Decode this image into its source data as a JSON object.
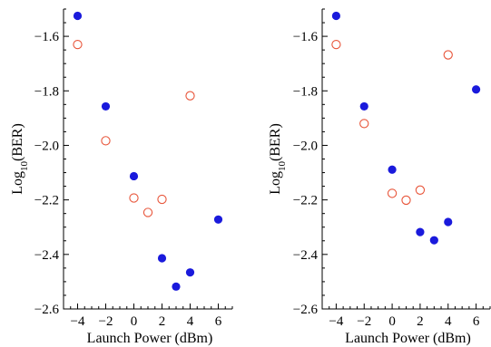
{
  "chart_data": [
    {
      "type": "scatter",
      "xlabel": "Launch Power  (dBm)",
      "ylabel_base": "Log",
      "ylabel_sub": "10",
      "ylabel_rest": "(BER)",
      "xlim": [
        -5,
        7
      ],
      "ylim": [
        -2.6,
        -1.5
      ],
      "xticks": [
        -4,
        -2,
        0,
        2,
        4,
        6
      ],
      "yticks": [
        -2.6,
        -2.4,
        -2.2,
        -2.0,
        -1.8,
        -1.6
      ],
      "xtick_labels": [
        "−4",
        "−2",
        "0",
        "2",
        "4",
        "6"
      ],
      "ytick_labels": [
        "−2.6",
        "−2.4",
        "−2.2",
        "−2.0",
        "−1.8",
        "−1.6"
      ],
      "grid": false,
      "series": [
        {
          "marker": "filled-circle",
          "color": "#1a1adc",
          "points": [
            {
              "x": -4,
              "y": -1.525
            },
            {
              "x": -2,
              "y": -1.857
            },
            {
              "x": 0,
              "y": -2.113
            },
            {
              "x": 2,
              "y": -2.414
            },
            {
              "x": 3,
              "y": -2.518
            },
            {
              "x": 4,
              "y": -2.466
            },
            {
              "x": 6,
              "y": -2.272
            }
          ]
        },
        {
          "marker": "open-circle",
          "color": "#e8553a",
          "points": [
            {
              "x": -4,
              "y": -1.63
            },
            {
              "x": -2,
              "y": -1.983
            },
            {
              "x": 0,
              "y": -2.193
            },
            {
              "x": 1,
              "y": -2.246
            },
            {
              "x": 2,
              "y": -2.198
            },
            {
              "x": 4,
              "y": -1.818
            }
          ]
        }
      ]
    },
    {
      "type": "scatter",
      "xlabel": "Launch Power  (dBm)",
      "ylabel_base": "Log",
      "ylabel_sub": "10",
      "ylabel_rest": "(BER)",
      "xlim": [
        -5,
        7
      ],
      "ylim": [
        -2.6,
        -1.5
      ],
      "xticks": [
        -4,
        -2,
        0,
        2,
        4,
        6
      ],
      "yticks": [
        -2.6,
        -2.4,
        -2.2,
        -2.0,
        -1.8,
        -1.6
      ],
      "xtick_labels": [
        "−4",
        "−2",
        "0",
        "2",
        "4",
        "6"
      ],
      "ytick_labels": [
        "−2.6",
        "−2.4",
        "−2.2",
        "−2.0",
        "−1.8",
        "−1.6"
      ],
      "grid": false,
      "series": [
        {
          "marker": "filled-circle",
          "color": "#1a1adc",
          "points": [
            {
              "x": -4,
              "y": -1.525
            },
            {
              "x": -2,
              "y": -1.857
            },
            {
              "x": 0,
              "y": -2.089
            },
            {
              "x": 2,
              "y": -2.318
            },
            {
              "x": 3,
              "y": -2.348
            },
            {
              "x": 4,
              "y": -2.281
            },
            {
              "x": 6,
              "y": -1.795
            }
          ]
        },
        {
          "marker": "open-circle",
          "color": "#e8553a",
          "points": [
            {
              "x": -4,
              "y": -1.63
            },
            {
              "x": -2,
              "y": -1.92
            },
            {
              "x": 0,
              "y": -2.176
            },
            {
              "x": 1,
              "y": -2.201
            },
            {
              "x": 2,
              "y": -2.164
            },
            {
              "x": 4,
              "y": -1.668
            }
          ]
        }
      ]
    }
  ]
}
